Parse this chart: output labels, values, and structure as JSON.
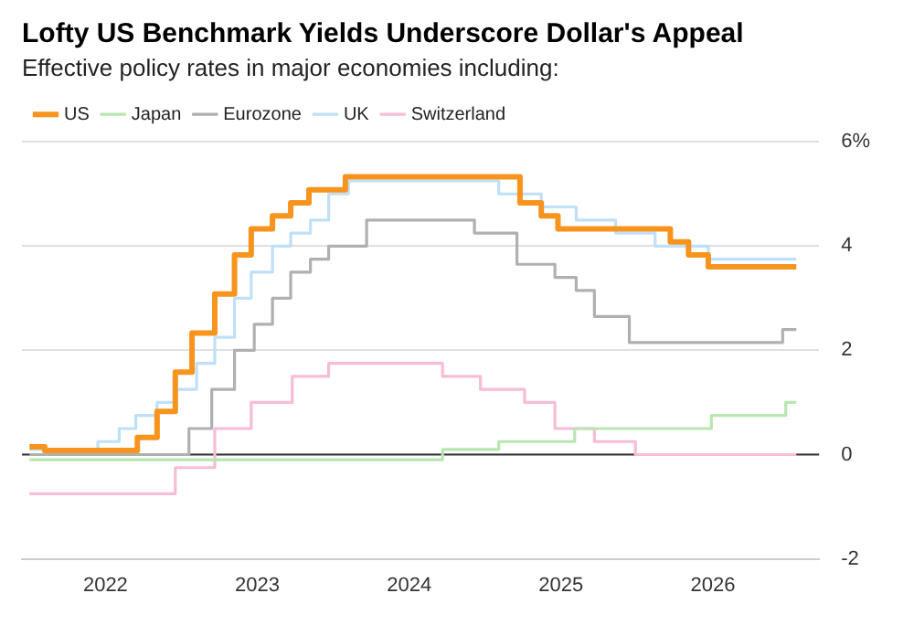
{
  "chart_data": {
    "type": "step",
    "title": "Lofty US Benchmark Yields Underscore Dollar's Appeal",
    "subtitle": "Effective policy rates in major economies including:",
    "xlim": [
      2021.45,
      2026.7
    ],
    "xticks": [
      2022,
      2023,
      2024,
      2025,
      2026
    ],
    "ylim": [
      -2,
      6
    ],
    "yticks": [
      -2,
      0,
      2,
      4,
      {
        "value": 6,
        "label": "6%"
      }
    ],
    "grid": "y",
    "legend": "top left",
    "ref_lines": [
      {
        "axis": "y",
        "value": 0,
        "color": "#333333"
      }
    ],
    "series": [
      {
        "name": "US",
        "color": "#f7941d",
        "x": [
          2021.5,
          2021.6,
          2022.21,
          2022.34,
          2022.46,
          2022.57,
          2022.72,
          2022.85,
          2022.96,
          2023.1,
          2023.22,
          2023.34,
          2023.58,
          2024.73,
          2024.87,
          2024.98,
          2025.72,
          2025.84,
          2025.97,
          2026.55
        ],
        "values": [
          0.15,
          0.08,
          0.33,
          0.83,
          1.58,
          2.33,
          3.08,
          3.83,
          4.33,
          4.58,
          4.83,
          5.08,
          5.33,
          4.83,
          4.58,
          4.33,
          4.08,
          3.83,
          3.6,
          3.6
        ]
      },
      {
        "name": "Japan",
        "color": "#b8e6b0",
        "x": [
          2021.5,
          2024.22,
          2024.59,
          2025.09,
          2025.99,
          2026.48,
          2026.55
        ],
        "values": [
          -0.1,
          0.1,
          0.25,
          0.5,
          0.75,
          1,
          1
        ]
      },
      {
        "name": "Eurozone",
        "color": "#b0b0b0",
        "x": [
          2021.5,
          2022.55,
          2022.7,
          2022.85,
          2022.98,
          2023.1,
          2023.22,
          2023.35,
          2023.47,
          2023.72,
          2024.43,
          2024.71,
          2024.96,
          2025.1,
          2025.22,
          2025.45,
          2026.46,
          2026.55
        ],
        "values": [
          0,
          0.5,
          1.25,
          2,
          2.5,
          3,
          3.5,
          3.75,
          4,
          4.5,
          4.25,
          3.65,
          3.4,
          3.15,
          2.65,
          2.15,
          2.4,
          2.4
        ]
      },
      {
        "name": "UK",
        "color": "#bfe0f7",
        "x": [
          2021.5,
          2021.95,
          2022.09,
          2022.2,
          2022.34,
          2022.46,
          2022.6,
          2022.72,
          2022.85,
          2022.96,
          2023.1,
          2023.22,
          2023.35,
          2023.47,
          2023.6,
          2024.59,
          2024.87,
          2025.1,
          2025.36,
          2025.62,
          2025.97,
          2026.55
        ],
        "values": [
          0.1,
          0.25,
          0.5,
          0.75,
          1,
          1.25,
          1.75,
          2.25,
          3,
          3.5,
          4,
          4.25,
          4.5,
          5,
          5.25,
          5,
          4.75,
          4.5,
          4.25,
          4,
          3.75,
          3.75
        ]
      },
      {
        "name": "Switzerland",
        "color": "#f7bcd6",
        "x": [
          2021.5,
          2022.46,
          2022.72,
          2022.96,
          2023.23,
          2023.47,
          2024.22,
          2024.47,
          2024.76,
          2024.96,
          2025.22,
          2025.49,
          2026.55
        ],
        "values": [
          -0.75,
          -0.25,
          0.5,
          1,
          1.5,
          1.75,
          1.5,
          1.25,
          1,
          0.5,
          0.25,
          0,
          0
        ]
      }
    ]
  }
}
